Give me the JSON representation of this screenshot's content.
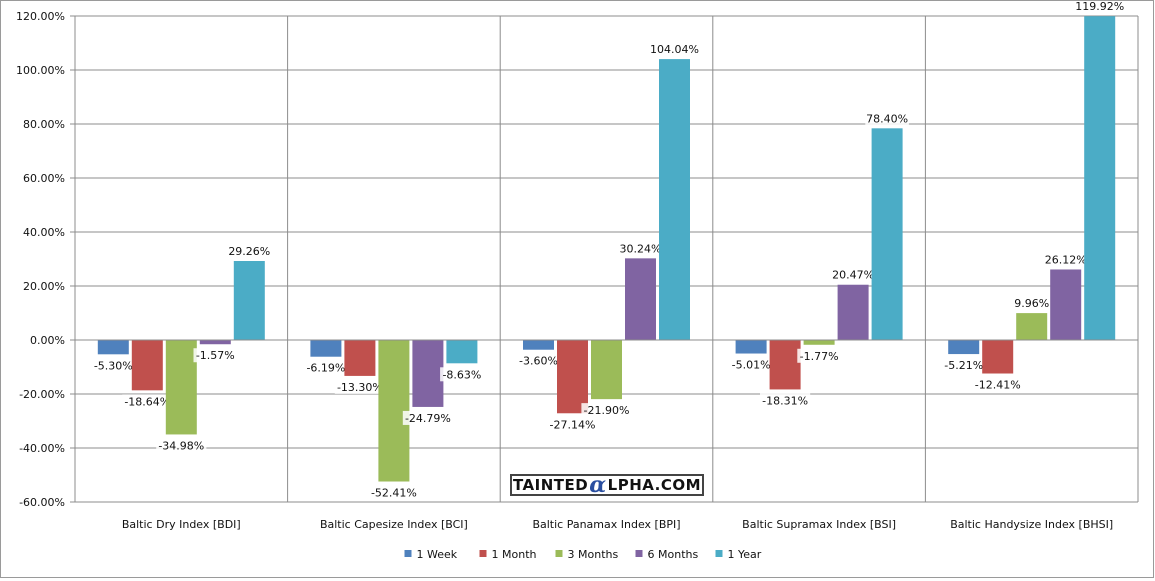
{
  "chart_data": {
    "type": "bar",
    "categories": [
      "Baltic Dry Index [BDI]",
      "Baltic Capesize Index [BCI]",
      "Baltic Panamax Index [BPI]",
      "Baltic Supramax Index [BSI]",
      "Baltic Handysize Index [BHSI]"
    ],
    "series": [
      {
        "name": "1 Week",
        "color": "#4F81BD",
        "values": [
          -5.3,
          -6.19,
          -3.6,
          -5.01,
          -5.21
        ]
      },
      {
        "name": "1 Month",
        "color": "#C0504D",
        "values": [
          -18.64,
          -13.3,
          -27.14,
          -18.31,
          -12.41
        ]
      },
      {
        "name": "3 Months",
        "color": "#9BBB59",
        "values": [
          -34.98,
          -52.41,
          -21.9,
          -1.77,
          9.96
        ]
      },
      {
        "name": "6 Months",
        "color": "#8064A2",
        "values": [
          -1.57,
          -24.79,
          30.24,
          20.47,
          26.12
        ]
      },
      {
        "name": "1 Year",
        "color": "#4BACC6",
        "values": [
          29.26,
          -8.63,
          104.04,
          78.4,
          119.92
        ]
      }
    ],
    "data_labels": [
      [
        "-5.30%",
        "-6.19%",
        "-3.60%",
        "-5.01%",
        "-5.21%"
      ],
      [
        "-18.64%",
        "-13.30%",
        "-27.14%",
        "-18.31%",
        "-12.41%"
      ],
      [
        "-34.98%",
        "-52.41%",
        "-21.90%",
        "-1.77%",
        "9.96%"
      ],
      [
        "-1.57%",
        "-24.79%",
        "30.24%",
        "20.47%",
        "26.12%"
      ],
      [
        "29.26%",
        "-8.63%",
        "104.04%",
        "78.40%",
        "119.92%"
      ]
    ],
    "yticks": [
      120,
      100,
      80,
      60,
      40,
      20,
      0,
      -20,
      -40,
      -60
    ],
    "ytick_labels": [
      "120.00%",
      "100.00%",
      "80.00%",
      "60.00%",
      "40.00%",
      "20.00%",
      "0.00%",
      "-20.00%",
      "-40.00%",
      "-60.00%"
    ],
    "ylim": [
      -60,
      120
    ],
    "grid": true,
    "legend_position": "bottom",
    "title": "",
    "xlabel": "",
    "ylabel": ""
  },
  "watermark": {
    "prefix": "TAINTED",
    "alpha": "α",
    "suffix": "LPHA.COM"
  }
}
